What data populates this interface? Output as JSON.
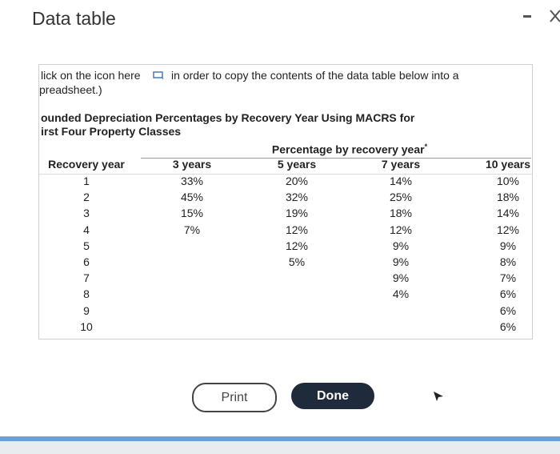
{
  "header": {
    "title": "Data table"
  },
  "instruction": {
    "line1_before": "lick on the icon here",
    "line1_after": "in order to copy the contents of the data table below into a",
    "line2": "preadsheet.)"
  },
  "table": {
    "title_line1": "ounded Depreciation Percentages by Recovery Year Using MACRS for",
    "title_line2": "irst Four Property Classes",
    "group_header": "Percentage by recovery year",
    "group_header_mark": "*",
    "columns": [
      "Recovery year",
      "3 years",
      "5 years",
      "7 years",
      "10 years"
    ],
    "rows": [
      [
        "1",
        "33%",
        "20%",
        "14%",
        "10%"
      ],
      [
        "2",
        "45%",
        "32%",
        "25%",
        "18%"
      ],
      [
        "3",
        "15%",
        "19%",
        "18%",
        "14%"
      ],
      [
        "4",
        "7%",
        "12%",
        "12%",
        "12%"
      ],
      [
        "5",
        null,
        "12%",
        "9%",
        "9%"
      ],
      [
        "6",
        null,
        "5%",
        "9%",
        "8%"
      ],
      [
        "7",
        null,
        null,
        "9%",
        "7%"
      ],
      [
        "8",
        null,
        null,
        "4%",
        "6%"
      ],
      [
        "9",
        null,
        null,
        null,
        "6%"
      ],
      [
        "10",
        null,
        null,
        null,
        "6%"
      ]
    ]
  },
  "buttons": {
    "print": "Print",
    "done": "Done"
  }
}
